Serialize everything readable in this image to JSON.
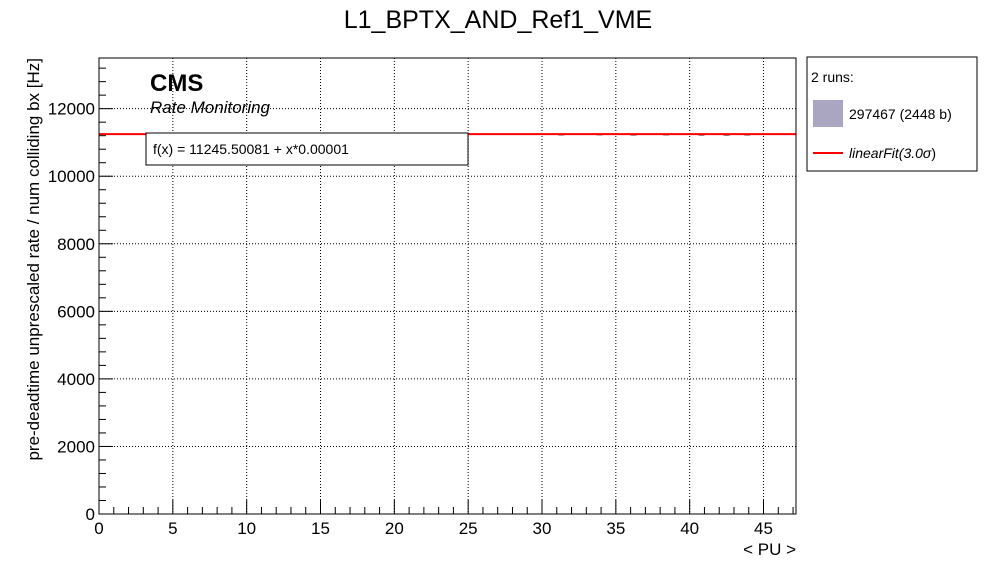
{
  "chart_data": {
    "type": "line",
    "title": "L1_BPTX_AND_Ref1_VME",
    "xlabel": "< PU >",
    "ylabel": "pre-deadtime unprescaled rate / num colliding bx [Hz]",
    "xlim": [
      0,
      47.2
    ],
    "ylim": [
      0,
      13500
    ],
    "x_ticks": [
      0,
      5,
      10,
      15,
      20,
      25,
      30,
      35,
      40,
      45
    ],
    "x_tick_labels": [
      "0",
      "5",
      "10",
      "15",
      "20",
      "25",
      "30",
      "35",
      "40",
      "45"
    ],
    "y_ticks": [
      0,
      2000,
      4000,
      6000,
      8000,
      10000,
      12000
    ],
    "y_tick_labels": [
      "0",
      "2000",
      "4000",
      "6000",
      "8000",
      "10000",
      "12000"
    ],
    "grid": true,
    "legend_position": "outside-right-top",
    "series": [
      {
        "name": "297467 (2448 b)",
        "kind": "scatter",
        "color": "#aaa6c1",
        "x": [
          31.3,
          33.9,
          36.2,
          38.4,
          40.8,
          42.5,
          43.9
        ],
        "y": [
          11235,
          11238,
          11232,
          11236,
          11230,
          11228,
          11234
        ]
      },
      {
        "name": "linearFit(3.0σ)",
        "kind": "line",
        "color": "#ff0000",
        "x": [
          -0.5,
          47.2
        ],
        "y": [
          11245.50081,
          11245.50081
        ]
      }
    ],
    "fit_label": "f(x) = 11245.50081 + x*0.00001"
  },
  "overlay": {
    "cms": "CMS",
    "subtitle": "Rate Monitoring"
  },
  "legend": {
    "header": "2 runs:",
    "items": [
      {
        "label": "297467 (2448 b)",
        "symbol": "box",
        "color": "#aaa6c1"
      },
      {
        "label_main": "linearFit(3.0",
        "label_sigma": "σ",
        "label_close": ")",
        "symbol": "line",
        "color": "#ff0000"
      }
    ]
  }
}
